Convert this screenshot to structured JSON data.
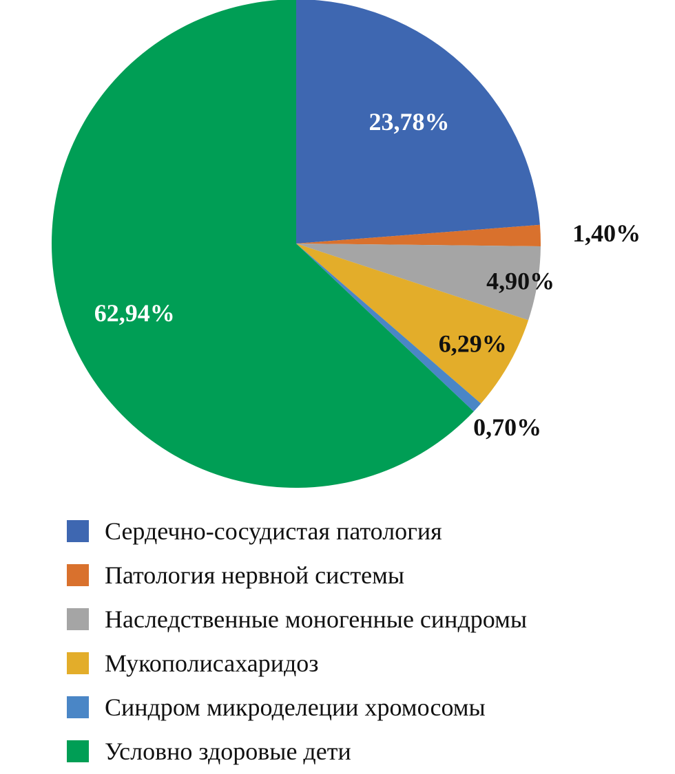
{
  "chart_data": {
    "type": "pie",
    "start": "top",
    "direction": "clockwise",
    "slices": [
      {
        "name": "Сердечно-сосудистая патология",
        "value": 23.78,
        "label": "23,78%",
        "color": "#3e67b1",
        "label_color": "#ffffff",
        "label_position": "inside"
      },
      {
        "name": "Патология нервной системы",
        "value": 1.4,
        "label": "1,40%",
        "color": "#d9712d",
        "label_color": "#111111",
        "label_position": "outside"
      },
      {
        "name": "Наследственные моногенные синдромы",
        "value": 4.9,
        "label": "4,90%",
        "color": "#a5a5a5",
        "label_color": "#111111",
        "label_position": "inside"
      },
      {
        "name": "Мукополисахаридоз",
        "value": 6.29,
        "label": "6,29%",
        "color": "#e3ad2a",
        "label_color": "#111111",
        "label_position": "inside"
      },
      {
        "name": "Синдром микроделеции хромосомы",
        "value": 0.7,
        "label": "0,70%",
        "color": "#4a86c6",
        "label_color": "#111111",
        "label_position": "outside"
      },
      {
        "name": "Условно здоровые дети",
        "value": 62.94,
        "label": "62,94%",
        "color": "#009e55",
        "label_color": "#ffffff",
        "label_position": "inside"
      }
    ],
    "legend_position": "bottom"
  },
  "legend": {
    "items": [
      {
        "label": "Сердечно-сосудистая патология",
        "color": "#3e67b1"
      },
      {
        "label": "Патология нервной системы",
        "color": "#d9712d"
      },
      {
        "label": "Наследственные моногенные синдромы",
        "color": "#a5a5a5"
      },
      {
        "label": "Мукополисахаридоз",
        "color": "#e3ad2a"
      },
      {
        "label": "Синдром микроделеции хромосомы",
        "color": "#4a86c6"
      },
      {
        "label": "Условно здоровые дети",
        "color": "#009e55"
      }
    ]
  }
}
